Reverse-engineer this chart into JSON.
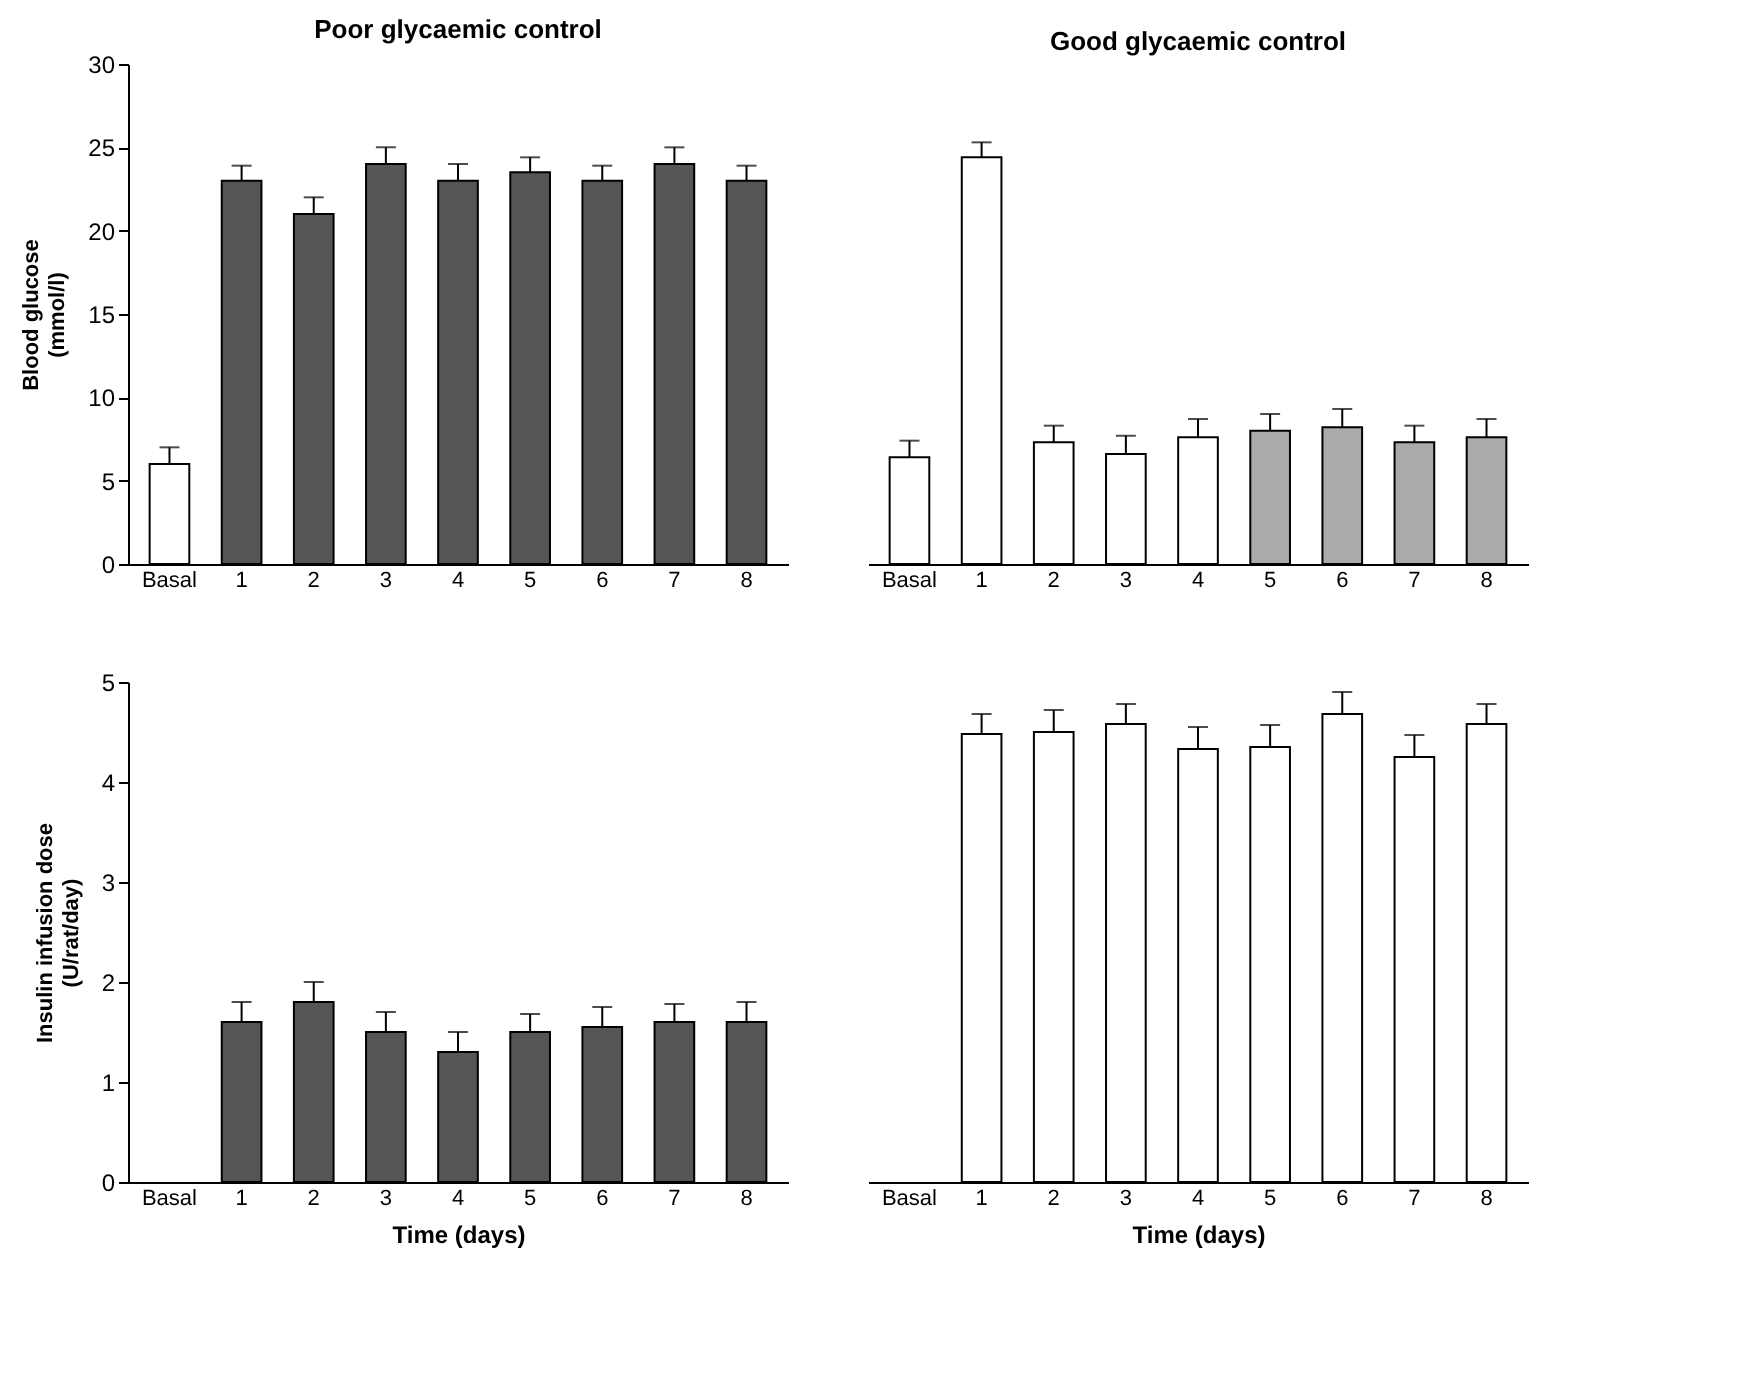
{
  "chart_data": [
    {
      "type": "bar",
      "title": "Poor glycaemic control",
      "ylabel": "Blood glucose (mmol/l)",
      "categories": [
        "Basal",
        "1",
        "2",
        "3",
        "4",
        "5",
        "6",
        "7",
        "8"
      ],
      "values": [
        6,
        23,
        21,
        24,
        23,
        23.5,
        23,
        24,
        23
      ],
      "errors": [
        [
          6,
          7
        ],
        [
          23,
          23.9
        ],
        [
          21,
          22
        ],
        [
          24,
          25
        ],
        [
          23,
          24
        ],
        [
          23.5,
          24.4
        ],
        [
          23,
          23.9
        ],
        [
          24,
          25
        ],
        [
          23,
          23.9
        ]
      ],
      "colors": [
        "#ffffff",
        "#555555",
        "#555555",
        "#555555",
        "#555555",
        "#555555",
        "#555555",
        "#555555",
        "#555555"
      ],
      "ylim": [
        0,
        30
      ],
      "yticks": [
        0,
        5,
        10,
        15,
        20,
        25,
        30
      ]
    },
    {
      "type": "bar",
      "title": "Good glycaemic control",
      "categories": [
        "Basal",
        "1",
        "2",
        "3",
        "4",
        "5",
        "6",
        "7",
        "8"
      ],
      "values": [
        6.4,
        24.4,
        7.3,
        6.6,
        7.6,
        8,
        8.2,
        7.3,
        7.6
      ],
      "errors": [
        [
          6.4,
          7.4
        ],
        [
          24.4,
          25.3
        ],
        [
          7.3,
          8.3
        ],
        [
          6.6,
          7.7
        ],
        [
          7.6,
          8.7
        ],
        [
          8,
          9
        ],
        [
          8.2,
          9.3
        ],
        [
          7.3,
          8.3
        ],
        [
          7.6,
          8.7
        ]
      ],
      "colors": [
        "#ffffff",
        "#ffffff",
        "#ffffff",
        "#ffffff",
        "#ffffff",
        "#aaaaaa",
        "#aaaaaa",
        "#aaaaaa",
        "#aaaaaa"
      ],
      "ylim": [
        0,
        30
      ],
      "tick_labels": "x"
    },
    {
      "type": "bar",
      "xlabel": "Time (days)",
      "ylabel": "Insulin infusion dose (U/rat/day)",
      "categories": [
        "Basal",
        "1",
        "2",
        "3",
        "4",
        "5",
        "6",
        "7",
        "8"
      ],
      "values": [
        null,
        1.6,
        1.8,
        1.5,
        1.3,
        1.5,
        1.55,
        1.6,
        1.6
      ],
      "errors": [
        null,
        [
          1.6,
          1.8
        ],
        [
          1.8,
          2
        ],
        [
          1.5,
          1.7
        ],
        [
          1.3,
          1.5
        ],
        [
          1.5,
          1.68
        ],
        [
          1.55,
          1.75
        ],
        [
          1.6,
          1.78
        ],
        [
          1.6,
          1.8
        ]
      ],
      "colors": [
        "#ffffff",
        "#555555",
        "#555555",
        "#555555",
        "#555555",
        "#555555",
        "#555555",
        "#555555",
        "#555555"
      ],
      "ylim": [
        0,
        5
      ],
      "yticks": [
        0,
        1,
        2,
        3,
        4,
        5
      ]
    },
    {
      "type": "bar",
      "xlabel": "Time (days)",
      "categories": [
        "Basal",
        "1",
        "2",
        "3",
        "4",
        "5",
        "6",
        "7",
        "8"
      ],
      "values": [
        null,
        4.48,
        4.5,
        4.58,
        4.33,
        4.35,
        4.68,
        4.25,
        4.58
      ],
      "errors": [
        null,
        [
          4.48,
          4.68
        ],
        [
          4.5,
          4.72
        ],
        [
          4.58,
          4.78
        ],
        [
          4.33,
          4.55
        ],
        [
          4.35,
          4.57
        ],
        [
          4.68,
          4.9
        ],
        [
          4.25,
          4.47
        ],
        [
          4.58,
          4.78
        ]
      ],
      "colors": [
        "#ffffff",
        "#ffffff",
        "#ffffff",
        "#ffffff",
        "#ffffff",
        "#ffffff",
        "#ffffff",
        "#ffffff",
        "#ffffff"
      ],
      "ylim": [
        0,
        5
      ],
      "tick_labels": "x"
    }
  ]
}
